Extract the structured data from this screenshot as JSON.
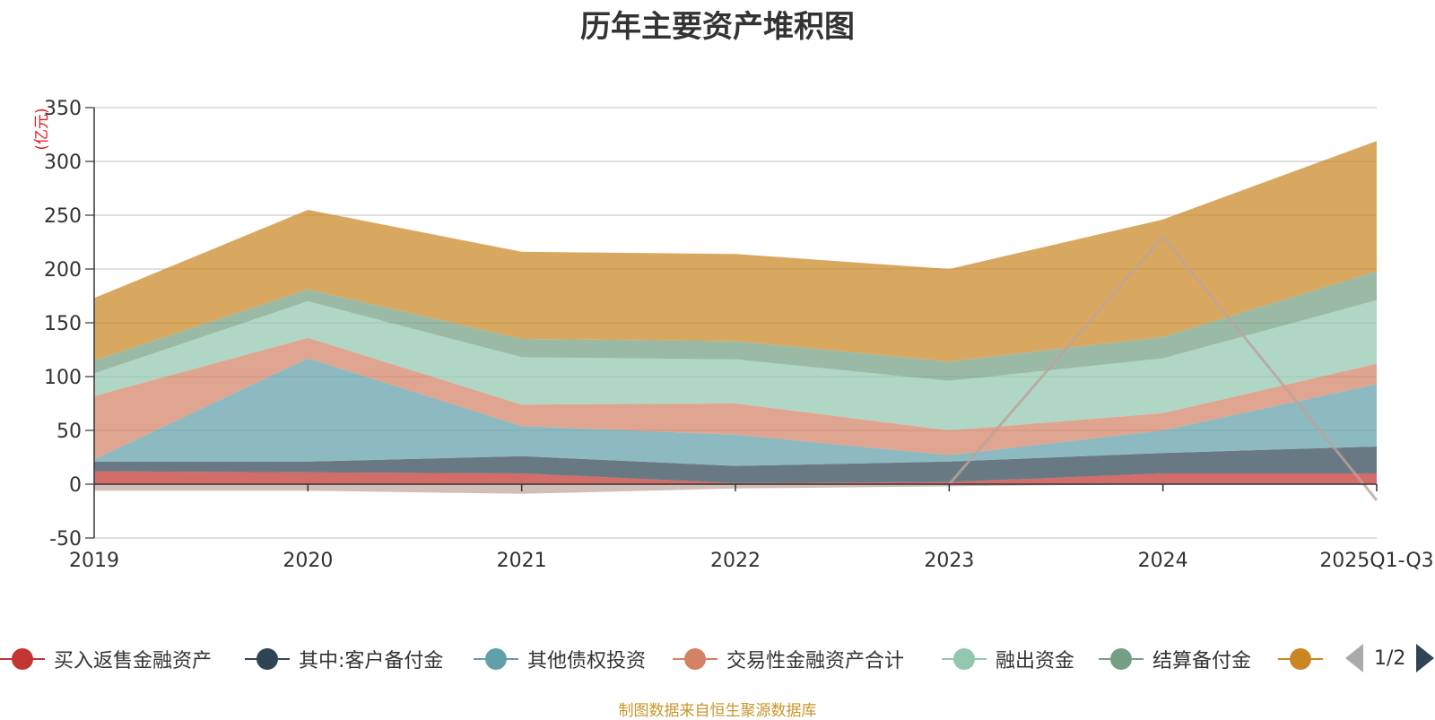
{
  "title": "历年主要资产堆积图",
  "unit_label": "(亿元)",
  "source": "制图数据来自恒生聚源数据库",
  "pager": {
    "text": "1/2"
  },
  "chart_data": {
    "type": "area",
    "stacked": true,
    "title": "历年主要资产堆积图",
    "ylabel": "(亿元)",
    "ylim": [
      -50,
      350
    ],
    "yticks": [
      -50,
      0,
      50,
      100,
      150,
      200,
      250,
      300,
      350
    ],
    "categories": [
      "2019",
      "2020",
      "2021",
      "2022",
      "2023",
      "2024",
      "2025Q1-Q3"
    ],
    "series": [
      {
        "name": "买入返售金融资产",
        "color": "#c23531",
        "values": [
          12,
          11,
          10,
          1,
          2,
          10,
          10
        ]
      },
      {
        "name": "其中:客户备付金",
        "color": "#2f4554",
        "values": [
          9,
          10,
          16,
          16,
          19,
          19,
          25
        ]
      },
      {
        "name": "其他债权投资",
        "color": "#61a0a8",
        "values": [
          2,
          96,
          28,
          29,
          6,
          21,
          58
        ]
      },
      {
        "name": "交易性金融资产合计",
        "color": "#d48265",
        "values": [
          59,
          19,
          20,
          29,
          23,
          16,
          19
        ]
      },
      {
        "name": "融出资金",
        "color": "#91c7ae",
        "values": [
          21,
          34,
          44,
          41,
          46,
          51,
          59
        ]
      },
      {
        "name": "结算备付金",
        "color": "#749f83",
        "values": [
          12,
          11,
          17,
          17,
          18,
          20,
          27
        ]
      },
      {
        "name": "",
        "color": "#ca8622",
        "values": [
          58,
          74,
          81,
          81,
          86,
          109,
          121
        ]
      }
    ],
    "negative_band": {
      "color": "#bda29a",
      "values": [
        -6,
        -6,
        -9,
        -4,
        -2,
        0,
        0
      ]
    },
    "overlay_lines": [
      {
        "color": "#bda29a",
        "values": [
          null,
          null,
          null,
          null,
          0,
          230,
          -15
        ]
      }
    ]
  }
}
